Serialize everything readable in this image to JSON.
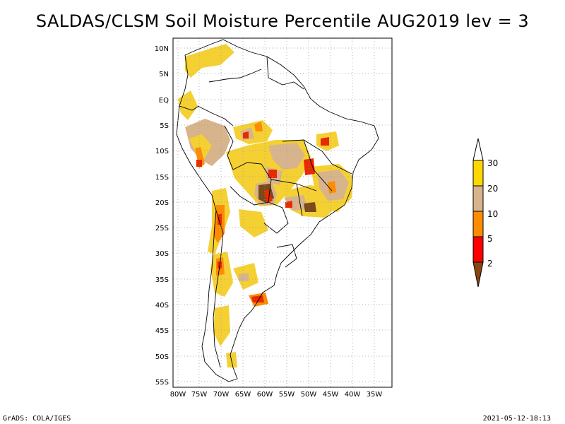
{
  "title": "SALDAS/CLSM Soil Moisture Percentile AUG2019 lev = 3",
  "footer_left": "GrADS: COLA/IGES",
  "footer_right": "2021-05-12-18:13",
  "lat_labels": [
    "10N",
    "5N",
    "EQ",
    "5S",
    "10S",
    "15S",
    "20S",
    "25S",
    "30S",
    "35S",
    "40S",
    "45S",
    "50S",
    "55S"
  ],
  "lon_labels": [
    "80W",
    "75W",
    "70W",
    "65W",
    "60W",
    "55W",
    "50W",
    "45W",
    "40W",
    "35W"
  ],
  "colorbar": {
    "labels": [
      "30",
      "20",
      "10",
      "5",
      "2"
    ],
    "colors": [
      "#ffd700",
      "#d8b48c",
      "#ff8c00",
      "#ff0000",
      "#8b4513"
    ]
  },
  "map_colors": {
    "yellow": "#f5d033",
    "tan": "#d8b48c",
    "orange": "#ff8c00",
    "red": "#e82a00",
    "brown": "#7a4a1a"
  }
}
